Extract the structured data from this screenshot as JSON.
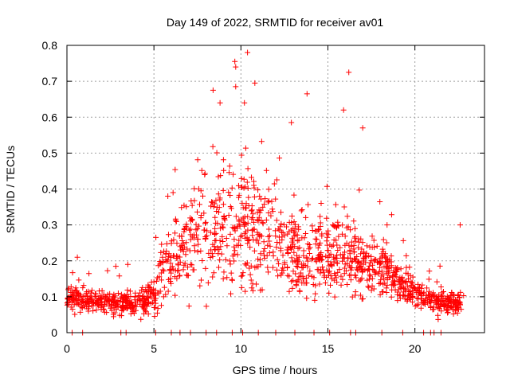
{
  "chart_data": {
    "type": "scatter",
    "title": "Day 149 of 2022, SRMTID for receiver av01",
    "xlabel": "GPS time / hours",
    "ylabel": "SRMTID / TECUs",
    "xlim": [
      0,
      24
    ],
    "ylim": [
      0,
      0.8
    ],
    "xticks": [
      0,
      5,
      10,
      15,
      20
    ],
    "xtick_labels": [
      "0",
      "5",
      "10",
      "15",
      "20"
    ],
    "yticks": [
      0,
      0.1,
      0.2,
      0.3,
      0.4,
      0.5,
      0.6,
      0.7,
      0.8
    ],
    "ytick_labels": [
      "0",
      "0.1",
      "0.2",
      "0.3",
      "0.4",
      "0.5",
      "0.6",
      "0.7",
      "0.8"
    ],
    "grid": true,
    "marker": "+",
    "series": [
      {
        "name": "SRMTID",
        "color": "#ff0000",
        "profile": {
          "hours": [
            0,
            1,
            2,
            3,
            4,
            5,
            5.5,
            6,
            7,
            8,
            9,
            10,
            11,
            12,
            13,
            14,
            15,
            16,
            17,
            18,
            19,
            20,
            21,
            22,
            22.8
          ],
          "median": [
            0.1,
            0.09,
            0.09,
            0.08,
            0.08,
            0.1,
            0.18,
            0.22,
            0.25,
            0.28,
            0.3,
            0.3,
            0.28,
            0.25,
            0.23,
            0.21,
            0.21,
            0.22,
            0.19,
            0.18,
            0.15,
            0.11,
            0.09,
            0.08,
            0.08
          ],
          "spread": [
            0.03,
            0.03,
            0.03,
            0.03,
            0.03,
            0.04,
            0.09,
            0.11,
            0.13,
            0.15,
            0.16,
            0.15,
            0.13,
            0.12,
            0.11,
            0.1,
            0.1,
            0.1,
            0.08,
            0.07,
            0.05,
            0.04,
            0.03,
            0.03,
            0.03
          ]
        },
        "zero_points_hours": [
          0.3,
          0.9,
          3.1,
          3.4,
          5.1,
          6.0,
          6.5,
          7.1,
          8.0,
          8.6,
          9.5,
          10.1,
          11.0,
          12.0,
          13.1,
          14.2,
          15.1,
          16.3,
          16.6,
          18.1,
          19.3,
          20.5,
          20.9,
          21.1,
          21.5
        ]
      }
    ],
    "highlights": [
      {
        "x": 9.65,
        "y": 0.755
      },
      {
        "x": 9.7,
        "y": 0.74
      },
      {
        "x": 9.7,
        "y": 0.685
      },
      {
        "x": 8.4,
        "y": 0.675
      },
      {
        "x": 10.8,
        "y": 0.695
      },
      {
        "x": 13.8,
        "y": 0.665
      },
      {
        "x": 16.2,
        "y": 0.725
      },
      {
        "x": 17.0,
        "y": 0.57
      },
      {
        "x": 12.9,
        "y": 0.585
      },
      {
        "x": 8.8,
        "y": 0.64
      },
      {
        "x": 10.2,
        "y": 0.64
      },
      {
        "x": 15.9,
        "y": 0.62
      },
      {
        "x": 5.8,
        "y": 0.38
      },
      {
        "x": 6.1,
        "y": 0.39
      },
      {
        "x": 22.6,
        "y": 0.3
      },
      {
        "x": 18.4,
        "y": 0.3
      },
      {
        "x": 0.6,
        "y": 0.21
      },
      {
        "x": 3.5,
        "y": 0.19
      }
    ]
  }
}
